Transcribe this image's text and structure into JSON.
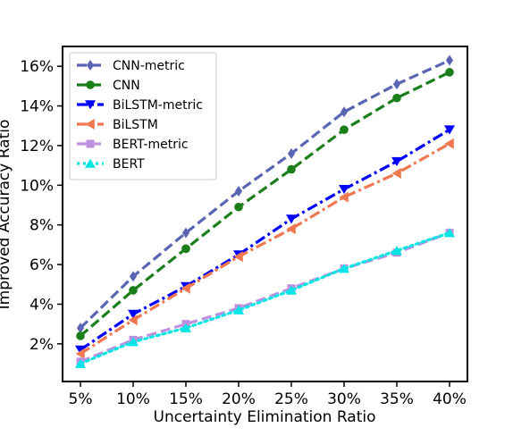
{
  "chart_data": {
    "type": "line",
    "xlabel": "Uncertainty Elimination Ratio",
    "ylabel": "Improved Accuracy Ratio",
    "categories": [
      "5%",
      "10%",
      "15%",
      "20%",
      "25%",
      "30%",
      "35%",
      "40%"
    ],
    "ylim": [
      0.1,
      17
    ],
    "yticks": [
      2,
      4,
      6,
      8,
      10,
      12,
      14,
      16
    ],
    "ytick_labels": [
      "2%",
      "4%",
      "6%",
      "8%",
      "10%",
      "12%",
      "14%",
      "16%"
    ],
    "grid": false,
    "legend_position": "top-left",
    "series": [
      {
        "name": "CNN-metric",
        "color": "#5a64b4",
        "dash": "dashed",
        "marker": "diamond",
        "values": [
          2.8,
          5.4,
          7.6,
          9.7,
          11.6,
          13.7,
          15.1,
          16.3
        ]
      },
      {
        "name": "CNN",
        "color": "#1a7f1a",
        "dash": "dashed",
        "marker": "circle",
        "values": [
          2.4,
          4.7,
          6.8,
          8.9,
          10.8,
          12.8,
          14.4,
          15.7
        ]
      },
      {
        "name": "BiLSTM-metric",
        "color": "#0000ff",
        "dash": "dashdot",
        "marker": "triangle-down",
        "values": [
          1.7,
          3.5,
          4.9,
          6.5,
          8.3,
          9.8,
          11.2,
          12.8
        ]
      },
      {
        "name": "BiLSTM",
        "color": "#f07850",
        "dash": "dashdot",
        "marker": "triangle-left",
        "values": [
          1.5,
          3.2,
          4.8,
          6.4,
          7.8,
          9.4,
          10.6,
          12.1
        ]
      },
      {
        "name": "BERT-metric",
        "color": "#c090e0",
        "dash": "dashed",
        "marker": "square",
        "values": [
          1.1,
          2.2,
          3.0,
          3.8,
          4.8,
          5.8,
          6.6,
          7.6
        ]
      },
      {
        "name": "BERT",
        "color": "#00e5e5",
        "dash": "dotted",
        "marker": "triangle-up",
        "values": [
          1.0,
          2.1,
          2.8,
          3.7,
          4.7,
          5.8,
          6.7,
          7.6
        ]
      }
    ]
  }
}
